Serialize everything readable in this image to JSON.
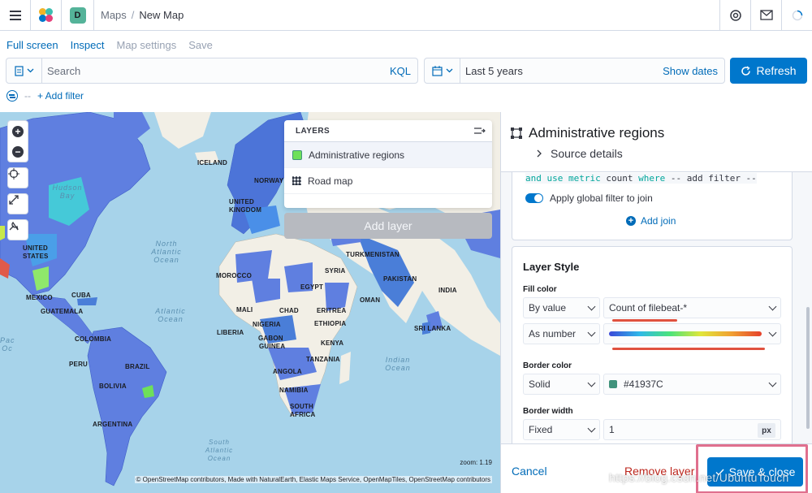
{
  "header": {
    "space_letter": "D",
    "breadcrumb_parent": "Maps",
    "breadcrumb_sep": "/",
    "breadcrumb_current": "New Map"
  },
  "topnav": {
    "full_screen": "Full screen",
    "inspect": "Inspect",
    "map_settings": "Map settings",
    "save": "Save"
  },
  "query": {
    "search_placeholder": "Search",
    "language": "KQL",
    "date_range": "Last 5 years",
    "show_dates": "Show dates",
    "refresh": "Refresh"
  },
  "filters": {
    "dash": "--",
    "add_filter": "+ Add filter"
  },
  "map": {
    "labels": [
      "ICELAND",
      "NORWAY",
      "UNITED KINGDOM",
      "UNITED STATES",
      "MEXICO",
      "CUBA",
      "GUATEMALA",
      "COLOMBIA",
      "BRAZIL",
      "BOLIVIA",
      "PERU",
      "ARGENTINA",
      "MOROCCO",
      "MALI",
      "NIGERIA",
      "LIBERIA",
      "CHAD",
      "EGYPT",
      "ERITREA",
      "ETHIOPIA",
      "KENYA",
      "TANZANIA",
      "ANGOLA",
      "NAMIBIA",
      "SOUTH AFRICA",
      "GABON",
      "GUINEA",
      "OMAN",
      "PAKISTAN",
      "TURKMENISTAN",
      "SRI LANKA",
      "INDIA",
      "SYRIA"
    ],
    "oceans": {
      "hudson": "Hudson Bay",
      "north_atlantic": "North Atlantic Ocean",
      "atlantic": "Atlantic Ocean",
      "indian": "Indian Ocean",
      "south_atlantic": "South Atlantic Ocean",
      "pacific": "Pac Oc"
    },
    "zoom_text": "zoom: 1.19",
    "attribution": "© OpenStreetMap contributors, Made with NaturalEarth, Elastic Maps Service, OpenMapTiles, OpenStreetMap contributors"
  },
  "layers": {
    "title": "LAYERS",
    "items": [
      {
        "name": "Administrative regions",
        "icon": "green-swatch"
      },
      {
        "name": "Road map",
        "icon": "grid-icon"
      }
    ],
    "add_layer": "Add layer"
  },
  "panel": {
    "title": "Administrative regions",
    "source_details": "Source details",
    "join_code_parts": [
      "and use metric",
      "count",
      "where",
      "-- add filter --"
    ],
    "apply_global_filter": "Apply global filter to join",
    "add_join": "Add join",
    "layer_style": "Layer Style",
    "fill_color_label": "Fill color",
    "fill_by": "By value",
    "fill_field": "Count of filebeat-*",
    "fill_as": "As number",
    "border_color_label": "Border color",
    "border_mode": "Solid",
    "border_color_value": "#41937C",
    "border_width_label": "Border width",
    "border_width_mode": "Fixed",
    "border_width_value": "1",
    "border_width_unit": "px",
    "cancel": "Cancel",
    "remove_layer": "Remove layer",
    "save_close": "Save & close"
  },
  "watermark": "https://blog.csdn.net/UbuntuTouch",
  "colors": {
    "primary": "#0077cc",
    "border_color": "#41937C",
    "danger": "#bd271e"
  }
}
